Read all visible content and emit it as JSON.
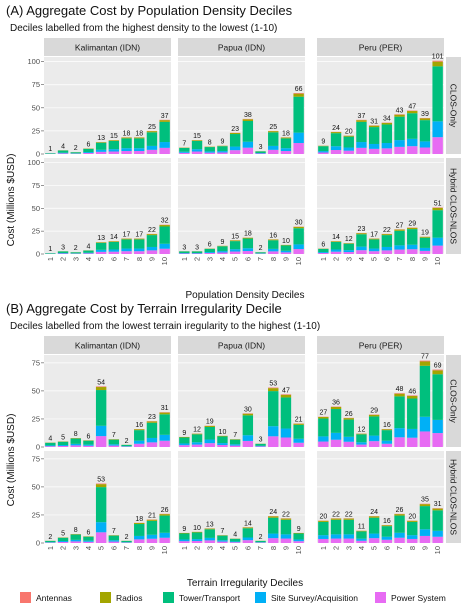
{
  "colors": {
    "Antennas": "#F8766D",
    "Radios": "#A3A500",
    "Tower/Transport": "#00BF7D",
    "Site Survey/Acquisition": "#00B0F6",
    "Power System": "#E76BF3",
    "panel_bg": "#EBEBEB",
    "strip_bg": "#D9D9D9",
    "grid": "#FFFFFF"
  },
  "legend": {
    "items": [
      "Antennas",
      "Radios",
      "Tower/Transport",
      "Site Survey/Acquisition",
      "Power System"
    ]
  },
  "chart_data": [
    {
      "type": "bar",
      "stacked": true,
      "title": "(A) Aggregate Cost by Population Density Deciles",
      "subtitle": "Deciles labelled from the highest density to the lowest (1-10)",
      "xlabel": "Population Density Deciles",
      "ylabel": "Cost (Millions $USD)",
      "ylim": [
        0,
        105
      ],
      "yticks": [
        0,
        25,
        50,
        75,
        100
      ],
      "categories": [
        "1",
        "2",
        "3",
        "4",
        "5",
        "6",
        "7",
        "8",
        "9",
        "10"
      ],
      "columns": [
        "Kalimantan (IDN)",
        "Papua (IDN)",
        "Peru (PER)"
      ],
      "rows": [
        "CLOS-Only",
        "Hybrid CLOS-NLOS"
      ],
      "series_names": [
        "Antennas",
        "Radios",
        "Tower/Transport",
        "Site Survey/Acquisition",
        "Power System"
      ],
      "panels": [
        {
          "column": "Kalimantan (IDN)",
          "row": "CLOS-Only",
          "totals": [
            1,
            4,
            2,
            6,
            13,
            15,
            18,
            18,
            25,
            37
          ]
        },
        {
          "column": "Papua (IDN)",
          "row": "CLOS-Only",
          "totals": [
            7,
            15,
            8,
            9,
            23,
            38,
            3,
            25,
            18,
            66
          ]
        },
        {
          "column": "Peru (PER)",
          "row": "CLOS-Only",
          "totals": [
            9,
            24,
            20,
            37,
            31,
            34,
            43,
            47,
            39,
            101
          ]
        },
        {
          "column": "Kalimantan (IDN)",
          "row": "Hybrid CLOS-NLOS",
          "totals": [
            1,
            3,
            2,
            4,
            13,
            14,
            17,
            17,
            22,
            32
          ]
        },
        {
          "column": "Papua (IDN)",
          "row": "Hybrid CLOS-NLOS",
          "totals": [
            3,
            3,
            6,
            9,
            15,
            18,
            2,
            16,
            10,
            30
          ]
        },
        {
          "column": "Peru (PER)",
          "row": "Hybrid CLOS-NLOS",
          "totals": [
            6,
            14,
            12,
            23,
            17,
            22,
            27,
            29,
            19,
            51
          ]
        }
      ]
    },
    {
      "type": "bar",
      "stacked": true,
      "title": "(B) Aggregate Cost by Terrain Irregularity Decile",
      "subtitle": "Deciles labelled from the lowest terrain iregularity to the highest (1-10)",
      "xlabel": "Terrain Irregularity Deciles",
      "ylabel": "Cost (Millions $USD)",
      "ylim": [
        0,
        82
      ],
      "yticks": [
        0,
        25,
        50,
        75
      ],
      "categories": [
        "1",
        "2",
        "3",
        "4",
        "5",
        "6",
        "7",
        "8",
        "9",
        "10"
      ],
      "columns": [
        "Kalimantan (IDN)",
        "Papua (IDN)",
        "Peru (PER)"
      ],
      "rows": [
        "CLOS-Only",
        "Hybrid CLOS-NLOS"
      ],
      "series_names": [
        "Antennas",
        "Radios",
        "Tower/Transport",
        "Site Survey/Acquisition",
        "Power System"
      ],
      "panels": [
        {
          "column": "Kalimantan (IDN)",
          "row": "CLOS-Only",
          "totals": [
            4,
            5,
            8,
            6,
            54,
            7,
            2,
            16,
            23,
            31
          ]
        },
        {
          "column": "Papua (IDN)",
          "row": "CLOS-Only",
          "totals": [
            9,
            12,
            19,
            10,
            7,
            30,
            3,
            53,
            47,
            21
          ]
        },
        {
          "column": "Peru (PER)",
          "row": "CLOS-Only",
          "totals": [
            27,
            36,
            26,
            12,
            29,
            16,
            48,
            46,
            77,
            69
          ]
        },
        {
          "column": "Kalimantan (IDN)",
          "row": "Hybrid CLOS-NLOS",
          "totals": [
            2,
            5,
            8,
            6,
            53,
            7,
            2,
            18,
            21,
            26
          ]
        },
        {
          "column": "Papua (IDN)",
          "row": "Hybrid CLOS-NLOS",
          "totals": [
            9,
            10,
            13,
            7,
            4,
            14,
            2,
            24,
            22,
            9
          ]
        },
        {
          "column": "Peru (PER)",
          "row": "Hybrid CLOS-NLOS",
          "totals": [
            20,
            22,
            22,
            11,
            24,
            16,
            26,
            20,
            35,
            31
          ]
        }
      ]
    }
  ]
}
